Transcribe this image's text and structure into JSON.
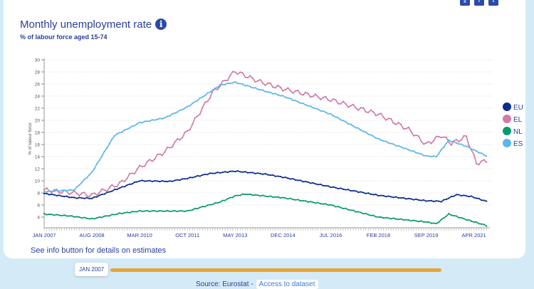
{
  "header": {
    "title": "Monthly unemployment rate",
    "subtitle": "% of labour force aged 15-74",
    "info_icon": "i"
  },
  "share_icons": [
    "download-icon",
    "facebook-icon",
    "twitter-icon"
  ],
  "note": "See info button for details on estimates",
  "slider": {
    "label": "JAN 2007"
  },
  "source": {
    "label": "Source: Eurostat -",
    "link": "Access to dataset"
  },
  "chart_data": {
    "type": "line",
    "title": "Monthly unemployment rate",
    "ylabel": "% of labour force",
    "ylim": [
      4,
      30
    ],
    "yticks": [
      4,
      6,
      8,
      10,
      12,
      14,
      16,
      18,
      20,
      22,
      24,
      26,
      28,
      30
    ],
    "x_start": "JAN 2007",
    "x_unit": "months since JAN 2007",
    "xlim": [
      0,
      176
    ],
    "xticks": [
      {
        "m": 0,
        "label": "JAN 2007"
      },
      {
        "m": 19,
        "label": "AUG 2008"
      },
      {
        "m": 38,
        "label": "MAR 2010"
      },
      {
        "m": 57,
        "label": "OCT 2011"
      },
      {
        "m": 76,
        "label": "MAY 2013"
      },
      {
        "m": 95,
        "label": "DEC 2014"
      },
      {
        "m": 114,
        "label": "JUL 2016"
      },
      {
        "m": 133,
        "label": "FEB 2018"
      },
      {
        "m": 152,
        "label": "SEP 2019"
      },
      {
        "m": 171,
        "label": "APR 2021"
      }
    ],
    "legend_position": "right",
    "grid": "horizontal dotted",
    "series": [
      {
        "name": "EU",
        "color": "#0b2d8f",
        "points": [
          [
            0,
            7.9
          ],
          [
            12,
            7.2
          ],
          [
            19,
            7.1
          ],
          [
            30,
            8.8
          ],
          [
            38,
            10.0
          ],
          [
            50,
            9.9
          ],
          [
            57,
            10.4
          ],
          [
            66,
            11.2
          ],
          [
            76,
            11.6
          ],
          [
            88,
            11.1
          ],
          [
            95,
            10.6
          ],
          [
            114,
            9.0
          ],
          [
            133,
            7.6
          ],
          [
            152,
            6.7
          ],
          [
            158,
            6.6
          ],
          [
            164,
            7.7
          ],
          [
            170,
            7.4
          ],
          [
            176,
            6.6
          ]
        ]
      },
      {
        "name": "EL",
        "color": "#d07aa8",
        "points": [
          [
            0,
            8.5
          ],
          [
            12,
            8.0
          ],
          [
            19,
            7.6
          ],
          [
            30,
            9.5
          ],
          [
            38,
            12.2
          ],
          [
            48,
            14.8
          ],
          [
            57,
            18.1
          ],
          [
            67,
            24.6
          ],
          [
            76,
            28.1
          ],
          [
            85,
            26.5
          ],
          [
            95,
            25.2
          ],
          [
            114,
            23.4
          ],
          [
            133,
            21.0
          ],
          [
            145,
            18.5
          ],
          [
            152,
            16.0
          ],
          [
            158,
            17.5
          ],
          [
            162,
            16.2
          ],
          [
            168,
            17.3
          ],
          [
            172,
            12.9
          ],
          [
            176,
            13.3
          ]
        ]
      },
      {
        "name": "NL",
        "color": "#0a9a6e",
        "points": [
          [
            0,
            4.5
          ],
          [
            10,
            4.2
          ],
          [
            19,
            3.7
          ],
          [
            30,
            4.6
          ],
          [
            38,
            5.0
          ],
          [
            57,
            5.0
          ],
          [
            70,
            6.5
          ],
          [
            76,
            7.5
          ],
          [
            80,
            7.8
          ],
          [
            95,
            7.2
          ],
          [
            114,
            6.0
          ],
          [
            133,
            4.0
          ],
          [
            152,
            3.2
          ],
          [
            156,
            2.9
          ],
          [
            161,
            4.5
          ],
          [
            168,
            3.6
          ],
          [
            176,
            2.6
          ]
        ]
      },
      {
        "name": "ES",
        "color": "#5cb6e8",
        "points": [
          [
            0,
            8.2
          ],
          [
            12,
            8.5
          ],
          [
            19,
            11.4
          ],
          [
            28,
            17.5
          ],
          [
            38,
            19.6
          ],
          [
            48,
            20.4
          ],
          [
            57,
            22.2
          ],
          [
            70,
            25.8
          ],
          [
            76,
            26.3
          ],
          [
            88,
            24.8
          ],
          [
            95,
            24.0
          ],
          [
            114,
            21.0
          ],
          [
            133,
            16.9
          ],
          [
            152,
            14.1
          ],
          [
            156,
            14.0
          ],
          [
            161,
            16.7
          ],
          [
            168,
            15.7
          ],
          [
            176,
            14.1
          ]
        ]
      }
    ]
  }
}
